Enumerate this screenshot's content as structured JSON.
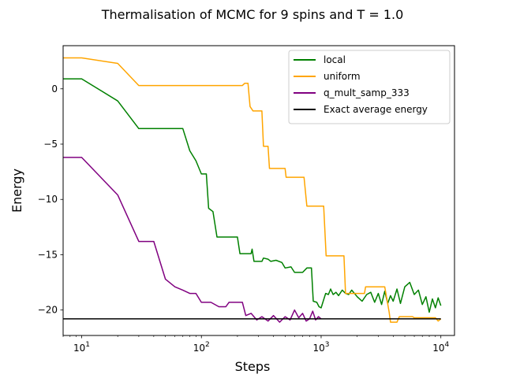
{
  "chart_data": {
    "type": "line",
    "title": "Thermalisation of MCMC for 9 spins and T = 1.0",
    "xlabel": "Steps",
    "ylabel": "Energy",
    "xscale": "log",
    "xlim": [
      7,
      13000
    ],
    "ylim": [
      -22.3,
      3.9
    ],
    "xticks": [
      {
        "value": 10,
        "base": "10",
        "exp": "1"
      },
      {
        "value": 100,
        "base": "10",
        "exp": "2"
      },
      {
        "value": 1000,
        "base": "10",
        "exp": "3"
      },
      {
        "value": 10000,
        "base": "10",
        "exp": "4"
      }
    ],
    "yticks": [
      {
        "value": 0,
        "label": "0"
      },
      {
        "value": -5,
        "label": "−5"
      },
      {
        "value": -10,
        "label": "−10"
      },
      {
        "value": -15,
        "label": "−15"
      },
      {
        "value": -20,
        "label": "−20"
      }
    ],
    "legend_position": "top-right",
    "grid": false,
    "series": [
      {
        "name": "local",
        "color": "#008000",
        "points": [
          [
            1,
            0.9
          ],
          [
            10,
            0.9
          ],
          [
            20,
            -1.1
          ],
          [
            30,
            -3.6
          ],
          [
            70,
            -3.6
          ],
          [
            80,
            -5.6
          ],
          [
            90,
            -6.5
          ],
          [
            100,
            -7.7
          ],
          [
            110,
            -7.7
          ],
          [
            115,
            -10.8
          ],
          [
            125,
            -11.1
          ],
          [
            135,
            -13.4
          ],
          [
            200,
            -13.4
          ],
          [
            210,
            -14.9
          ],
          [
            260,
            -14.9
          ],
          [
            265,
            -14.5
          ],
          [
            275,
            -15.6
          ],
          [
            320,
            -15.6
          ],
          [
            330,
            -15.3
          ],
          [
            360,
            -15.4
          ],
          [
            380,
            -15.6
          ],
          [
            420,
            -15.5
          ],
          [
            470,
            -15.7
          ],
          [
            500,
            -16.2
          ],
          [
            560,
            -16.1
          ],
          [
            600,
            -16.6
          ],
          [
            700,
            -16.6
          ],
          [
            760,
            -16.2
          ],
          [
            830,
            -16.2
          ],
          [
            860,
            -19.2
          ],
          [
            920,
            -19.3
          ],
          [
            960,
            -19.7
          ],
          [
            1000,
            -19.8
          ],
          [
            1040,
            -19.2
          ],
          [
            1090,
            -18.5
          ],
          [
            1150,
            -18.6
          ],
          [
            1200,
            -18.1
          ],
          [
            1260,
            -18.6
          ],
          [
            1330,
            -18.4
          ],
          [
            1400,
            -18.7
          ],
          [
            1500,
            -18.2
          ],
          [
            1600,
            -18.5
          ],
          [
            1700,
            -18.6
          ],
          [
            1800,
            -18.2
          ],
          [
            2000,
            -18.8
          ],
          [
            2200,
            -19.2
          ],
          [
            2400,
            -18.6
          ],
          [
            2600,
            -18.4
          ],
          [
            2800,
            -19.3
          ],
          [
            3000,
            -18.5
          ],
          [
            3200,
            -19.5
          ],
          [
            3400,
            -18.3
          ],
          [
            3600,
            -19.4
          ],
          [
            3800,
            -18.7
          ],
          [
            4000,
            -19.2
          ],
          [
            4300,
            -18.1
          ],
          [
            4600,
            -19.4
          ],
          [
            5000,
            -17.9
          ],
          [
            5500,
            -17.5
          ],
          [
            6000,
            -18.6
          ],
          [
            6500,
            -18.2
          ],
          [
            7000,
            -19.5
          ],
          [
            7500,
            -18.8
          ],
          [
            8000,
            -20.2
          ],
          [
            8500,
            -19.0
          ],
          [
            9000,
            -19.8
          ],
          [
            9500,
            -18.9
          ],
          [
            10000,
            -19.6
          ]
        ]
      },
      {
        "name": "uniform",
        "color": "#ffa500",
        "points": [
          [
            1,
            2.8
          ],
          [
            10,
            2.8
          ],
          [
            20,
            2.3
          ],
          [
            30,
            0.3
          ],
          [
            220,
            0.3
          ],
          [
            230,
            0.5
          ],
          [
            245,
            0.5
          ],
          [
            255,
            -1.6
          ],
          [
            270,
            -2.0
          ],
          [
            320,
            -2.0
          ],
          [
            330,
            -5.2
          ],
          [
            360,
            -5.2
          ],
          [
            370,
            -7.2
          ],
          [
            500,
            -7.2
          ],
          [
            510,
            -8.0
          ],
          [
            720,
            -8.0
          ],
          [
            760,
            -10.6
          ],
          [
            1050,
            -10.6
          ],
          [
            1100,
            -15.1
          ],
          [
            1550,
            -15.1
          ],
          [
            1600,
            -18.5
          ],
          [
            2300,
            -18.5
          ],
          [
            2350,
            -17.9
          ],
          [
            3400,
            -17.9
          ],
          [
            3700,
            -20.2
          ],
          [
            3800,
            -21.1
          ],
          [
            4300,
            -21.1
          ],
          [
            4500,
            -20.6
          ],
          [
            5800,
            -20.6
          ],
          [
            6000,
            -20.7
          ],
          [
            9000,
            -20.7
          ],
          [
            9500,
            -21.0
          ],
          [
            10000,
            -20.8
          ]
        ]
      },
      {
        "name": "q_mult_samp_333",
        "color": "#800080",
        "points": [
          [
            1,
            -6.2
          ],
          [
            10,
            -6.2
          ],
          [
            20,
            -9.6
          ],
          [
            30,
            -13.8
          ],
          [
            40,
            -13.8
          ],
          [
            50,
            -17.2
          ],
          [
            60,
            -17.9
          ],
          [
            70,
            -18.2
          ],
          [
            80,
            -18.5
          ],
          [
            90,
            -18.5
          ],
          [
            100,
            -19.3
          ],
          [
            120,
            -19.3
          ],
          [
            140,
            -19.7
          ],
          [
            160,
            -19.7
          ],
          [
            170,
            -19.3
          ],
          [
            220,
            -19.3
          ],
          [
            235,
            -20.5
          ],
          [
            260,
            -20.3
          ],
          [
            290,
            -20.9
          ],
          [
            320,
            -20.6
          ],
          [
            360,
            -21.0
          ],
          [
            400,
            -20.5
          ],
          [
            450,
            -21.1
          ],
          [
            500,
            -20.6
          ],
          [
            550,
            -20.9
          ],
          [
            600,
            -20.0
          ],
          [
            650,
            -20.7
          ],
          [
            700,
            -20.3
          ],
          [
            750,
            -21.0
          ],
          [
            800,
            -20.8
          ],
          [
            850,
            -20.1
          ],
          [
            900,
            -20.9
          ],
          [
            950,
            -20.6
          ],
          [
            1000,
            -20.8
          ]
        ]
      },
      {
        "name": "Exact average energy",
        "color": "#000000",
        "points": [
          [
            1,
            -20.8
          ],
          [
            10000,
            -20.8
          ]
        ]
      }
    ]
  }
}
